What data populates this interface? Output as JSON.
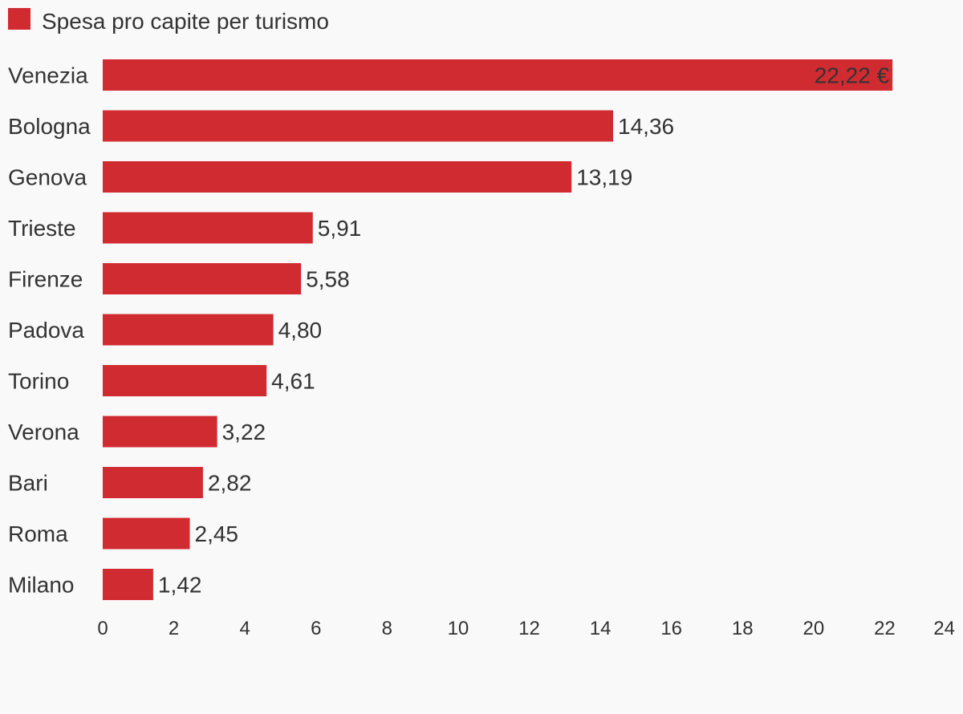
{
  "legend": {
    "label": "Spesa pro capite per turismo"
  },
  "colors": {
    "bar": "#d12b32",
    "text": "#333333",
    "background": "#f9f9f9"
  },
  "chart_data": {
    "type": "bar",
    "orientation": "horizontal",
    "categories": [
      "Venezia",
      "Bologna",
      "Genova",
      "Trieste",
      "Firenze",
      "Padova",
      "Torino",
      "Verona",
      "Bari",
      "Roma",
      "Milano"
    ],
    "series": [
      {
        "name": "Spesa pro capite per turismo",
        "values": [
          22.22,
          14.36,
          13.19,
          5.91,
          5.58,
          4.8,
          4.61,
          3.22,
          2.82,
          2.45,
          1.42
        ]
      }
    ],
    "value_labels": [
      "22,22 €",
      "14,36",
      "13,19",
      "5,91",
      "5,58",
      "4,80",
      "4,61",
      "3,22",
      "2,82",
      "2,45",
      "1,42"
    ],
    "x_ticks": [
      "0",
      "2",
      "4",
      "6",
      "8",
      "10",
      "12",
      "14",
      "16",
      "18",
      "20",
      "22",
      "24"
    ],
    "xlim": [
      0,
      24
    ],
    "xlabel": "",
    "ylabel": "",
    "grid": false,
    "legend_position": "top-left"
  }
}
